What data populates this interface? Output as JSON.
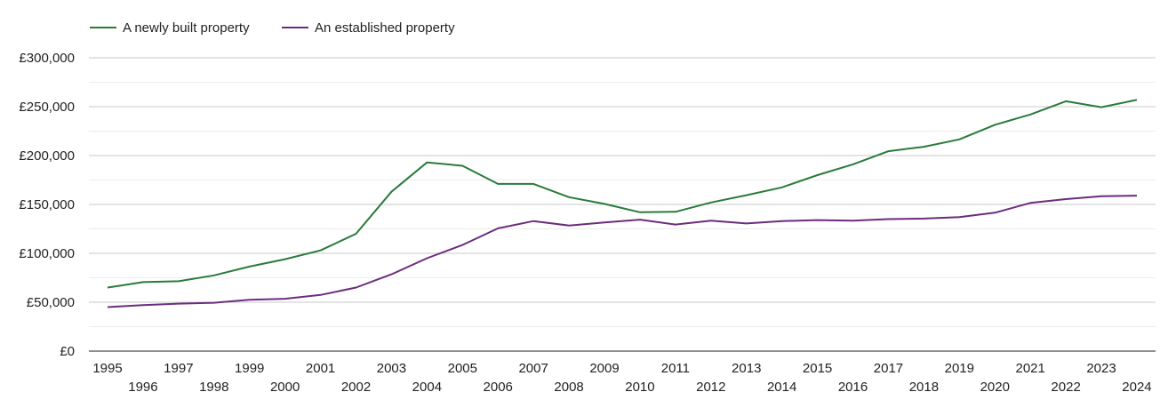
{
  "chart_data": {
    "type": "line",
    "title": "",
    "xlabel": "",
    "ylabel": "",
    "x": [
      1995,
      1996,
      1997,
      1998,
      1999,
      2000,
      2001,
      2002,
      2003,
      2004,
      2005,
      2006,
      2007,
      2008,
      2009,
      2010,
      2011,
      2012,
      2013,
      2014,
      2015,
      2016,
      2017,
      2018,
      2019,
      2020,
      2021,
      2022,
      2023,
      2024
    ],
    "ylim": [
      0,
      300000
    ],
    "y_ticks": [
      0,
      50000,
      100000,
      150000,
      200000,
      250000,
      300000
    ],
    "y_tick_labels": [
      "£0",
      "£50,000",
      "£100,000",
      "£150,000",
      "£200,000",
      "£250,000",
      "£300,000"
    ],
    "grid": true,
    "legend_position": "top-left",
    "series": [
      {
        "name": "A newly built property",
        "color": "#2a7a3a",
        "values": [
          65000,
          70500,
          71500,
          77500,
          86500,
          94000,
          103000,
          120000,
          163000,
          193000,
          189500,
          171000,
          171000,
          157500,
          150500,
          142000,
          142500,
          152000,
          159500,
          167500,
          180000,
          191000,
          204500,
          209000,
          216500,
          231500,
          242000,
          255500,
          249500,
          257000
        ]
      },
      {
        "name": "An established property",
        "color": "#6c2c7c",
        "values": [
          45000,
          47000,
          48500,
          49500,
          52500,
          53500,
          57500,
          65000,
          78500,
          95000,
          108500,
          125500,
          133000,
          128500,
          131500,
          134500,
          129500,
          133500,
          130500,
          133000,
          134000,
          133500,
          135000,
          135500,
          137000,
          141500,
          151500,
          155500,
          158500,
          159000
        ]
      }
    ]
  }
}
